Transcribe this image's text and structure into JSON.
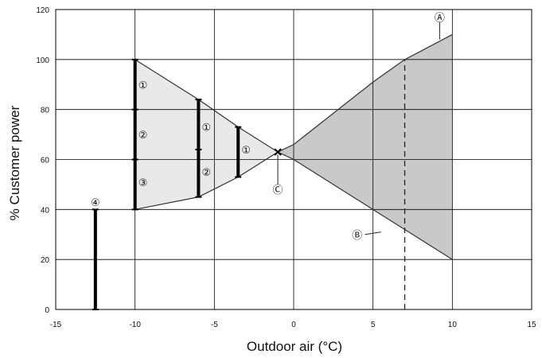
{
  "chart_data": {
    "type": "line",
    "title": "",
    "xlabel": "Outdoor air (°C)",
    "ylabel": "% Customer power",
    "xlim": [
      -15,
      15
    ],
    "ylim": [
      0,
      120
    ],
    "xticks": [
      -15,
      -10,
      -5,
      0,
      5,
      10,
      15
    ],
    "yticks": [
      0,
      20,
      40,
      60,
      80,
      100,
      120
    ],
    "grid": true,
    "series": [
      {
        "name": "",
        "style": "upper curve",
        "x": [
          -10,
          -6,
          -3.5,
          -1,
          0,
          5,
          7,
          10
        ],
        "y": [
          100,
          84,
          73,
          63,
          66,
          91,
          100,
          110
        ]
      },
      {
        "name": "",
        "style": "lower curve",
        "x": [
          -10,
          -6,
          -3.5,
          -1,
          0,
          5,
          7,
          10
        ],
        "y": [
          40,
          45,
          53,
          63,
          60,
          40,
          32,
          20
        ]
      }
    ],
    "bars": [
      {
        "x": -12.5,
        "y0": 0,
        "y1": 40
      },
      {
        "x": -10,
        "y0": 40,
        "y1": 100
      },
      {
        "x": -6,
        "y0": 45,
        "y1": 84
      },
      {
        "x": -3.5,
        "y0": 53,
        "y1": 73
      }
    ],
    "bar_ticks": [
      {
        "x": -10,
        "y": 60
      },
      {
        "x": -10,
        "y": 80
      },
      {
        "x": -6,
        "y": 64
      }
    ],
    "dashed_line": {
      "x": 7,
      "y0": 0,
      "y1": 100
    },
    "intersection": {
      "x": -1,
      "y": 63
    },
    "labels": [
      {
        "text": "①",
        "x": -9.5,
        "y": 90
      },
      {
        "text": "②",
        "x": -9.5,
        "y": 70
      },
      {
        "text": "③",
        "x": -9.5,
        "y": 51
      },
      {
        "text": "①",
        "x": -5.5,
        "y": 73
      },
      {
        "text": "②",
        "x": -5.5,
        "y": 55
      },
      {
        "text": "①",
        "x": -3,
        "y": 64
      },
      {
        "text": "④",
        "x": -12.5,
        "y": 43
      },
      {
        "text": "Ⓐ",
        "x": 9.2,
        "y": 117
      },
      {
        "text": "Ⓑ",
        "x": 4,
        "y": 30
      },
      {
        "text": "Ⓒ",
        "x": -1,
        "y": 48
      }
    ],
    "leaders": [
      {
        "x1": 9.2,
        "y1": 115,
        "x2": 9.2,
        "y2": 108
      },
      {
        "x1": 4.5,
        "y1": 30,
        "x2": 5.5,
        "y2": 31
      },
      {
        "x1": -1,
        "y1": 50,
        "x2": -1,
        "y2": 62
      }
    ],
    "fills": {
      "cool_region": "#e9e9e9",
      "warm_region": "#c9c9c9"
    },
    "colors": {
      "line": "#333333",
      "grid": "#000000",
      "bar": "#000000"
    }
  }
}
